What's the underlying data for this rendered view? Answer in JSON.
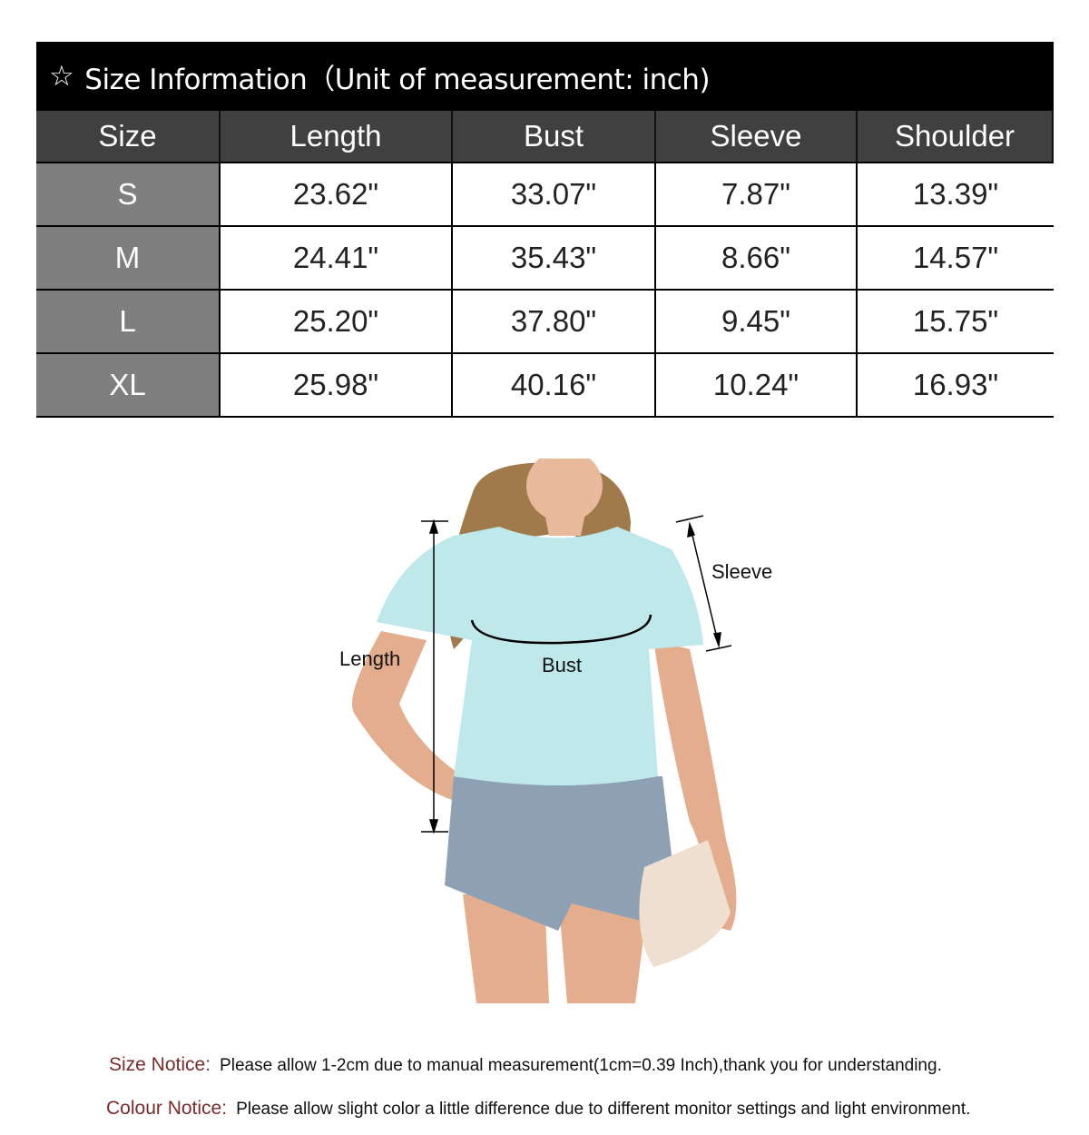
{
  "title": {
    "star_icon": "star-outline",
    "text": "Size Information（Unit of measurement: inch)"
  },
  "table": {
    "headers": [
      "Size",
      "Length",
      "Bust",
      "Sleeve",
      "Shoulder"
    ],
    "rows": [
      [
        "S",
        "23.62\"",
        "33.07\"",
        "7.87\"",
        "13.39\""
      ],
      [
        "M",
        "24.41\"",
        "35.43\"",
        "8.66\"",
        "14.57\""
      ],
      [
        "L",
        "25.20\"",
        "37.80\"",
        "9.45\"",
        "15.75\""
      ],
      [
        "XL",
        "25.98\"",
        "40.16\"",
        "10.24\"",
        "16.93\""
      ]
    ]
  },
  "diagram": {
    "length_label": "Length",
    "bust_label": "Bust",
    "sleeve_label": "Sleeve"
  },
  "notices": {
    "size_label": "Size Notice:",
    "size_text": "Please allow 1-2cm due to manual measurement(1cm=0.39 Inch),thank you for understanding.",
    "colour_label": "Colour Notice:",
    "colour_text": "Please allow slight color  a little difference due to different monitor settings and light environment."
  },
  "colors": {
    "title_bg": "#000000",
    "header_bg": "#404040",
    "size_col_bg": "#7f7f7f",
    "notice_label": "#7b2a2a",
    "shirt": "#bfe8ea"
  }
}
